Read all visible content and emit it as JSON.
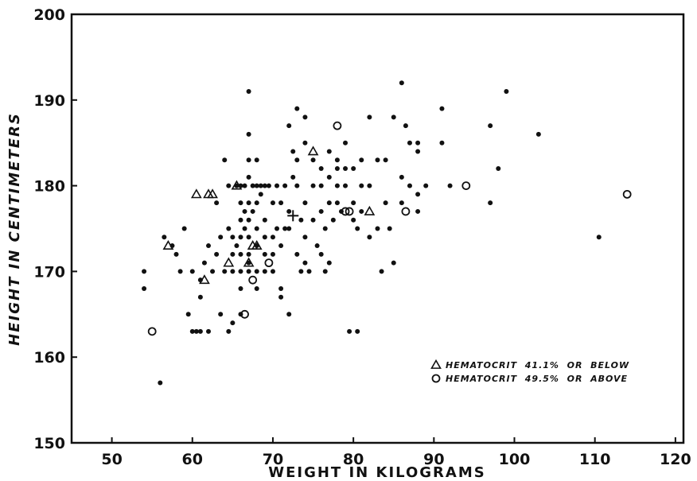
{
  "chart_data": {
    "type": "scatter",
    "xlabel": "WEIGHT IN KILOGRAMS",
    "ylabel": "HEIGHT IN CENTIMETERS",
    "xlim": [
      45,
      121
    ],
    "ylim": [
      150,
      200
    ],
    "x_ticks": [
      50,
      60,
      70,
      80,
      90,
      100,
      110,
      120
    ],
    "y_ticks": [
      150,
      160,
      170,
      180,
      190,
      200
    ],
    "grid": false,
    "legend_position": "lower-right",
    "mean_marker": {
      "x": 72.5,
      "y": 176.5,
      "symbol": "+"
    },
    "series": [
      {
        "name": "",
        "marker": "filled-circle",
        "points": [
          [
            54,
            170
          ],
          [
            54,
            168
          ],
          [
            56,
            157
          ],
          [
            56.5,
            174
          ],
          [
            57.5,
            173
          ],
          [
            58,
            172
          ],
          [
            58.5,
            170
          ],
          [
            59,
            175
          ],
          [
            59.5,
            165
          ],
          [
            60,
            163
          ],
          [
            60,
            170
          ],
          [
            60.5,
            163
          ],
          [
            61,
            163
          ],
          [
            61,
            167
          ],
          [
            61,
            169
          ],
          [
            61.5,
            171
          ],
          [
            62,
            163
          ],
          [
            62,
            173
          ],
          [
            62.5,
            170
          ],
          [
            63,
            172
          ],
          [
            63,
            178
          ],
          [
            63.5,
            165
          ],
          [
            63.5,
            174
          ],
          [
            64,
            170
          ],
          [
            64,
            183
          ],
          [
            64.5,
            163
          ],
          [
            64.5,
            175
          ],
          [
            64.5,
            180
          ],
          [
            65,
            164
          ],
          [
            65,
            170
          ],
          [
            65,
            172
          ],
          [
            65,
            174
          ],
          [
            65.5,
            180
          ],
          [
            65.5,
            173
          ],
          [
            66,
            165
          ],
          [
            66,
            168
          ],
          [
            66,
            170
          ],
          [
            66,
            172
          ],
          [
            66,
            174
          ],
          [
            66,
            176
          ],
          [
            66,
            178
          ],
          [
            66,
            180
          ],
          [
            66.5,
            177
          ],
          [
            66.5,
            175
          ],
          [
            66.5,
            180
          ],
          [
            67,
            191
          ],
          [
            67,
            186
          ],
          [
            67,
            183
          ],
          [
            67,
            181
          ],
          [
            67,
            178
          ],
          [
            67,
            176
          ],
          [
            67,
            174
          ],
          [
            67,
            172
          ],
          [
            67,
            171
          ],
          [
            67,
            170
          ],
          [
            67.5,
            180
          ],
          [
            67.5,
            177
          ],
          [
            68,
            183
          ],
          [
            68,
            180
          ],
          [
            68,
            178
          ],
          [
            68,
            175
          ],
          [
            68,
            173
          ],
          [
            68,
            170
          ],
          [
            68,
            168
          ],
          [
            68.5,
            180
          ],
          [
            68.5,
            179
          ],
          [
            69,
            180
          ],
          [
            69,
            176
          ],
          [
            69,
            174
          ],
          [
            69,
            172
          ],
          [
            69,
            170
          ],
          [
            69.5,
            180
          ],
          [
            70,
            178
          ],
          [
            70,
            174
          ],
          [
            70,
            172
          ],
          [
            70,
            170
          ],
          [
            70.5,
            180
          ],
          [
            70.5,
            175
          ],
          [
            71,
            178
          ],
          [
            71,
            173
          ],
          [
            71,
            168
          ],
          [
            71,
            167
          ],
          [
            71.5,
            175
          ],
          [
            71.5,
            180
          ],
          [
            72,
            165
          ],
          [
            72,
            177
          ],
          [
            72,
            175
          ],
          [
            72,
            187
          ],
          [
            72.5,
            181
          ],
          [
            72.5,
            184
          ],
          [
            73,
            172
          ],
          [
            73,
            180
          ],
          [
            73,
            183
          ],
          [
            73,
            189
          ],
          [
            73.5,
            170
          ],
          [
            73.5,
            176
          ],
          [
            74,
            185
          ],
          [
            74,
            188
          ],
          [
            74,
            178
          ],
          [
            74,
            174
          ],
          [
            74,
            171
          ],
          [
            74.5,
            170
          ],
          [
            75,
            183
          ],
          [
            75,
            176
          ],
          [
            75,
            180
          ],
          [
            75.5,
            173
          ],
          [
            76,
            182
          ],
          [
            76,
            180
          ],
          [
            76,
            177
          ],
          [
            76,
            172
          ],
          [
            76.5,
            170
          ],
          [
            76.5,
            175
          ],
          [
            77,
            184
          ],
          [
            77,
            181
          ],
          [
            77,
            178
          ],
          [
            77,
            171
          ],
          [
            77.5,
            176
          ],
          [
            78,
            182
          ],
          [
            78,
            180
          ],
          [
            78,
            178
          ],
          [
            78,
            183
          ],
          [
            78.5,
            177
          ],
          [
            79,
            185
          ],
          [
            79,
            182
          ],
          [
            79,
            180
          ],
          [
            79.5,
            163
          ],
          [
            80,
            176
          ],
          [
            80,
            178
          ],
          [
            80,
            182
          ],
          [
            80.5,
            163
          ],
          [
            80.5,
            175
          ],
          [
            81,
            180
          ],
          [
            81,
            177
          ],
          [
            81,
            183
          ],
          [
            82,
            188
          ],
          [
            82,
            180
          ],
          [
            82,
            174
          ],
          [
            83,
            183
          ],
          [
            83,
            175
          ],
          [
            83.5,
            170
          ],
          [
            84,
            183
          ],
          [
            84,
            178
          ],
          [
            84.5,
            175
          ],
          [
            85,
            188
          ],
          [
            85,
            171
          ],
          [
            86,
            192
          ],
          [
            86,
            181
          ],
          [
            86,
            178
          ],
          [
            86.5,
            187
          ],
          [
            87,
            185
          ],
          [
            87,
            180
          ],
          [
            88,
            185
          ],
          [
            88,
            184
          ],
          [
            88,
            179
          ],
          [
            88,
            177
          ],
          [
            89,
            180
          ],
          [
            91,
            189
          ],
          [
            91,
            185
          ],
          [
            92,
            180
          ],
          [
            97,
            187
          ],
          [
            97,
            178
          ],
          [
            98,
            182
          ],
          [
            99,
            191
          ],
          [
            103,
            186
          ],
          [
            110.5,
            174
          ]
        ]
      },
      {
        "name": "HEMATOCRIT  41.1%  OR  BELOW",
        "marker": "open-triangle",
        "points": [
          [
            57,
            173
          ],
          [
            60.5,
            179
          ],
          [
            62,
            179
          ],
          [
            62.5,
            179
          ],
          [
            64.5,
            171
          ],
          [
            65.5,
            180
          ],
          [
            67,
            171
          ],
          [
            67.5,
            173
          ],
          [
            68,
            173
          ],
          [
            61.5,
            169
          ],
          [
            75,
            184
          ],
          [
            82,
            177
          ]
        ]
      },
      {
        "name": "HEMATOCRIT  49.5%  OR  ABOVE",
        "marker": "open-circle",
        "points": [
          [
            55,
            163
          ],
          [
            66.5,
            165
          ],
          [
            67.5,
            169
          ],
          [
            69.5,
            171
          ],
          [
            78,
            187
          ],
          [
            79,
            177
          ],
          [
            79.5,
            177
          ],
          [
            86.5,
            177
          ],
          [
            94,
            180
          ],
          [
            114,
            179
          ]
        ]
      }
    ]
  }
}
